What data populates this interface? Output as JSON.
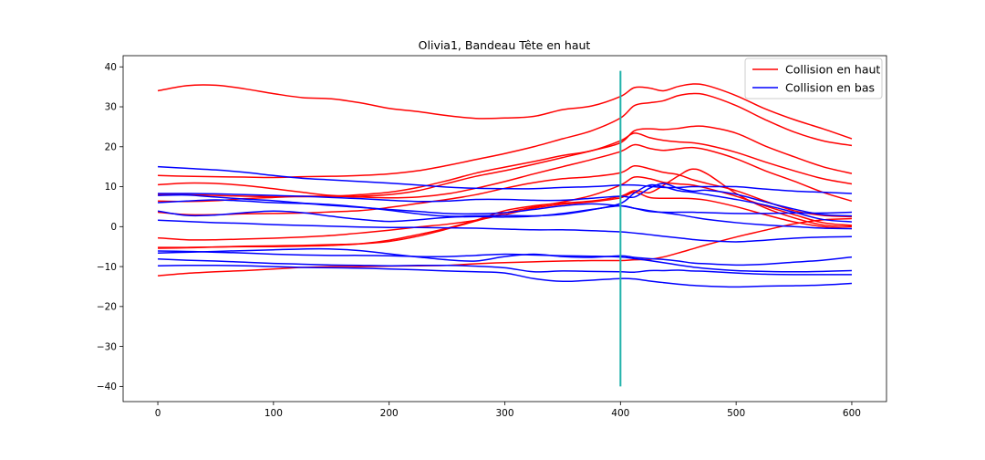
{
  "chart_data": {
    "type": "line",
    "title": "Olivia1, Bandeau Tête en haut",
    "xlabel": "",
    "ylabel": "",
    "xlim": [
      -30,
      630
    ],
    "ylim": [
      -43.8,
      42.8
    ],
    "x_ticks": [
      0,
      100,
      200,
      300,
      400,
      500,
      600
    ],
    "y_ticks": [
      -40,
      -30,
      -20,
      -10,
      0,
      10,
      20,
      30,
      40
    ],
    "grid": false,
    "legend_position": "top-right",
    "legend": [
      {
        "label": "Collision en haut",
        "color": "#ff0000"
      },
      {
        "label": "Collision en bas",
        "color": "#0000ff"
      }
    ],
    "vertical_marker": {
      "x": 400,
      "y_range": [
        -40,
        39
      ],
      "color": "#20b2aa"
    },
    "x": [
      0,
      25,
      50,
      75,
      100,
      125,
      150,
      175,
      200,
      225,
      250,
      275,
      300,
      325,
      350,
      375,
      400,
      412,
      425,
      437,
      450,
      462,
      475,
      500,
      525,
      550,
      575,
      600
    ],
    "series": [
      {
        "group": "Collision en haut",
        "color": "#ff0000",
        "values": [
          34.0,
          35.3,
          35.4,
          34.5,
          33.3,
          32.3,
          32.0,
          31.0,
          29.6,
          28.8,
          27.8,
          27.1,
          27.2,
          27.6,
          29.3,
          30.2,
          32.6,
          34.8,
          34.7,
          34.0,
          35.1,
          35.7,
          35.3,
          32.8,
          29.5,
          26.8,
          24.5,
          22.0
        ]
      },
      {
        "group": "Collision en haut",
        "color": "#ff0000",
        "values": [
          12.8,
          12.6,
          12.5,
          12.4,
          12.3,
          12.5,
          12.6,
          12.8,
          13.2,
          14.0,
          15.3,
          16.8,
          18.3,
          20.0,
          22.0,
          24.0,
          27.2,
          30.3,
          31.0,
          31.5,
          32.8,
          33.3,
          32.9,
          30.3,
          26.8,
          23.7,
          21.5,
          20.3
        ]
      },
      {
        "group": "Collision en haut",
        "color": "#ff0000",
        "values": [
          10.5,
          10.9,
          10.8,
          10.3,
          9.5,
          8.6,
          7.8,
          7.6,
          8.0,
          9.0,
          10.8,
          12.6,
          14.0,
          15.6,
          17.3,
          19.0,
          21.0,
          24.0,
          24.5,
          24.3,
          24.6,
          25.1,
          25.0,
          23.4,
          20.2,
          17.5,
          15.0,
          13.3
        ]
      },
      {
        "group": "Collision en haut",
        "color": "#ff0000",
        "values": [
          8.0,
          8.0,
          7.8,
          7.6,
          7.5,
          7.5,
          7.6,
          8.0,
          8.6,
          9.8,
          11.5,
          13.4,
          14.9,
          16.3,
          17.8,
          19.0,
          21.5,
          23.4,
          22.3,
          21.6,
          21.2,
          21.0,
          20.4,
          18.6,
          16.2,
          14.0,
          12.0,
          10.7
        ]
      },
      {
        "group": "Collision en haut",
        "color": "#ff0000",
        "values": [
          6.4,
          6.3,
          6.5,
          7.0,
          7.3,
          7.6,
          7.6,
          7.4,
          7.2,
          7.4,
          8.2,
          9.6,
          11.3,
          13.2,
          15.0,
          16.8,
          18.8,
          20.5,
          19.6,
          19.1,
          19.5,
          19.8,
          19.2,
          17.0,
          14.0,
          11.4,
          8.6,
          6.4
        ]
      },
      {
        "group": "Collision en haut",
        "color": "#ff0000",
        "values": [
          3.6,
          3.0,
          3.0,
          3.2,
          3.3,
          3.4,
          3.7,
          4.0,
          4.8,
          5.8,
          6.8,
          8.0,
          9.6,
          11.0,
          12.0,
          12.5,
          13.5,
          15.2,
          14.5,
          13.6,
          13.0,
          11.8,
          10.8,
          9.0,
          6.4,
          4.0,
          2.8,
          2.5
        ]
      },
      {
        "group": "Collision en haut",
        "color": "#ff0000",
        "values": [
          -5.4,
          -5.3,
          -5.1,
          -4.9,
          -4.8,
          -4.7,
          -4.5,
          -4.3,
          -3.7,
          -2.4,
          -0.6,
          1.4,
          3.4,
          4.9,
          6.2,
          7.8,
          10.4,
          12.4,
          12.0,
          11.1,
          10.7,
          10.4,
          9.6,
          7.6,
          5.2,
          3.0,
          1.0,
          0.3
        ]
      },
      {
        "group": "Collision en haut",
        "color": "#ff0000",
        "values": [
          -2.8,
          -3.3,
          -3.3,
          -3.1,
          -2.9,
          -2.6,
          -2.2,
          -1.6,
          -0.9,
          -0.1,
          0.6,
          1.6,
          3.0,
          4.6,
          5.6,
          6.2,
          7.2,
          8.6,
          7.3,
          7.1,
          7.1,
          7.0,
          6.6,
          5.0,
          3.0,
          1.2,
          0.0,
          -0.5
        ]
      },
      {
        "group": "Collision en haut",
        "color": "#ff0000",
        "values": [
          -5.2,
          -5.2,
          -5.1,
          -5.0,
          -5.0,
          -4.9,
          -4.7,
          -4.3,
          -3.4,
          -2.0,
          -0.4,
          1.6,
          4.0,
          5.2,
          5.9,
          6.4,
          7.6,
          9.0,
          8.5,
          10.3,
          12.7,
          14.4,
          13.2,
          8.3,
          4.7,
          2.2,
          0.4,
          0.0
        ]
      },
      {
        "group": "Collision en haut",
        "color": "#ff0000",
        "values": [
          -12.3,
          -11.7,
          -11.3,
          -11.0,
          -10.6,
          -10.2,
          -10.0,
          -10.0,
          -9.9,
          -9.8,
          -9.7,
          -9.3,
          -9.0,
          -8.8,
          -8.6,
          -8.5,
          -8.5,
          -8.3,
          -8.2,
          -7.6,
          -6.6,
          -5.6,
          -4.5,
          -2.6,
          -0.9,
          0.7,
          1.7,
          2.0
        ]
      },
      {
        "group": "Collision en bas",
        "color": "#0000ff",
        "values": [
          15.0,
          14.6,
          14.2,
          13.6,
          12.8,
          12.1,
          11.7,
          11.3,
          10.9,
          10.4,
          9.9,
          9.6,
          9.5,
          9.5,
          9.8,
          10.0,
          10.4,
          10.4,
          10.1,
          9.8,
          9.8,
          10.0,
          10.0,
          10.0,
          9.4,
          8.9,
          8.6,
          8.3
        ]
      },
      {
        "group": "Collision en bas",
        "color": "#0000ff",
        "values": [
          8.3,
          8.3,
          8.2,
          8.0,
          7.8,
          7.6,
          7.3,
          7.0,
          6.6,
          6.3,
          6.4,
          6.8,
          6.8,
          6.6,
          6.6,
          7.1,
          7.6,
          7.4,
          9.6,
          10.8,
          9.6,
          8.9,
          9.1,
          8.1,
          6.2,
          4.4,
          3.0,
          2.7
        ]
      },
      {
        "group": "Collision en bas",
        "color": "#0000ff",
        "values": [
          7.8,
          7.9,
          7.4,
          6.9,
          6.5,
          5.9,
          5.5,
          4.9,
          4.1,
          3.2,
          2.6,
          2.7,
          2.8,
          2.7,
          3.1,
          4.2,
          5.8,
          8.4,
          10.4,
          10.0,
          9.0,
          8.6,
          8.0,
          6.8,
          5.4,
          3.6,
          1.8,
          1.2
        ]
      },
      {
        "group": "Collision en bas",
        "color": "#0000ff",
        "values": [
          6.0,
          6.4,
          6.7,
          6.4,
          6.0,
          5.8,
          5.3,
          4.8,
          4.3,
          3.8,
          3.3,
          3.2,
          3.5,
          4.3,
          5.2,
          5.7,
          5.2,
          4.6,
          3.8,
          3.6,
          3.6,
          3.6,
          3.5,
          3.3,
          3.3,
          3.4,
          3.4,
          3.6
        ]
      },
      {
        "group": "Collision en bas",
        "color": "#0000ff",
        "values": [
          3.9,
          2.8,
          2.9,
          3.5,
          3.9,
          3.5,
          2.6,
          1.8,
          1.3,
          1.7,
          2.3,
          2.5,
          2.4,
          2.6,
          3.3,
          4.3,
          5.2,
          4.6,
          4.0,
          3.5,
          3.0,
          2.4,
          1.8,
          1.0,
          0.4,
          0.0,
          -0.4,
          -0.5
        ]
      },
      {
        "group": "Collision en bas",
        "color": "#0000ff",
        "values": [
          1.6,
          1.3,
          1.0,
          0.8,
          0.5,
          0.3,
          0.1,
          -0.1,
          -0.2,
          -0.2,
          -0.3,
          -0.4,
          -0.6,
          -0.8,
          -0.8,
          -1.0,
          -1.3,
          -1.6,
          -2.0,
          -2.4,
          -2.8,
          -3.2,
          -3.5,
          -3.8,
          -3.4,
          -2.9,
          -2.6,
          -2.5
        ]
      },
      {
        "group": "Collision en bas",
        "color": "#0000ff",
        "values": [
          -6.1,
          -6.2,
          -6.4,
          -6.6,
          -6.9,
          -7.1,
          -7.2,
          -7.2,
          -7.3,
          -7.5,
          -7.5,
          -7.2,
          -6.9,
          -7.1,
          -7.3,
          -7.4,
          -7.6,
          -8.0,
          -8.5,
          -9.0,
          -9.6,
          -10.1,
          -10.5,
          -11.0,
          -11.2,
          -11.3,
          -11.2,
          -11.0
        ]
      },
      {
        "group": "Collision en bas",
        "color": "#0000ff",
        "values": [
          -6.6,
          -6.4,
          -6.2,
          -6.0,
          -5.8,
          -5.6,
          -5.6,
          -6.0,
          -6.8,
          -7.6,
          -8.3,
          -8.6,
          -7.5,
          -6.9,
          -7.5,
          -7.7,
          -7.3,
          -7.7,
          -8.0,
          -8.2,
          -8.6,
          -9.1,
          -9.3,
          -9.6,
          -9.4,
          -8.9,
          -8.4,
          -7.6
        ]
      },
      {
        "group": "Collision en bas",
        "color": "#0000ff",
        "values": [
          -8.1,
          -8.4,
          -8.6,
          -8.9,
          -9.2,
          -9.4,
          -9.6,
          -9.7,
          -9.8,
          -9.7,
          -9.7,
          -9.9,
          -10.3,
          -11.3,
          -11.1,
          -11.2,
          -11.3,
          -11.4,
          -11.0,
          -11.0,
          -10.9,
          -11.1,
          -11.2,
          -11.6,
          -11.9,
          -12.0,
          -12.0,
          -12.0
        ]
      },
      {
        "group": "Collision en bas",
        "color": "#0000ff",
        "values": [
          -9.8,
          -9.7,
          -9.7,
          -9.8,
          -10.0,
          -10.2,
          -10.3,
          -10.4,
          -10.6,
          -10.8,
          -11.1,
          -11.3,
          -11.6,
          -13.0,
          -13.7,
          -13.4,
          -13.0,
          -13.1,
          -13.6,
          -14.0,
          -14.4,
          -14.7,
          -14.9,
          -15.1,
          -14.9,
          -14.8,
          -14.6,
          -14.2
        ]
      }
    ]
  }
}
